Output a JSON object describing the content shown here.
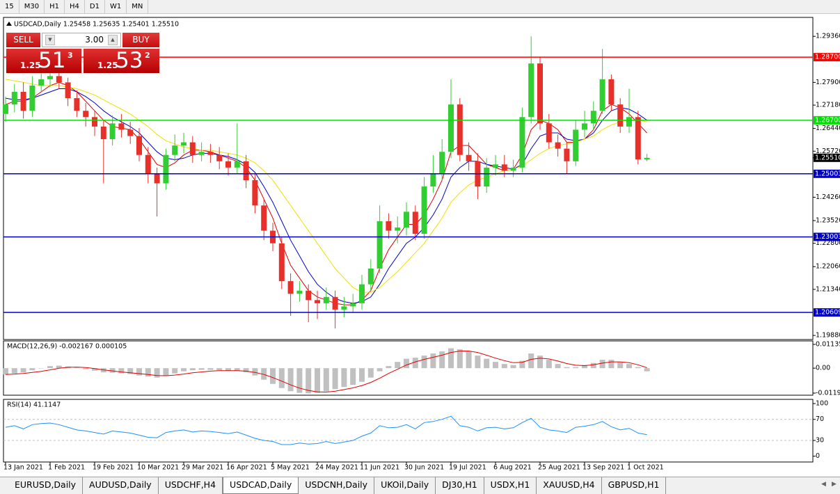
{
  "toolbar": {
    "timeframes": [
      "15",
      "M30",
      "H1",
      "H4",
      "D1",
      "W1",
      "MN"
    ]
  },
  "trade_panel": {
    "sell": "SELL",
    "buy": "BUY",
    "lot": "3.00",
    "sell_price": {
      "prefix": "1.25",
      "main": "51",
      "small": "3"
    },
    "buy_price": {
      "prefix": "1.25",
      "main": "53",
      "small": "2"
    }
  },
  "chart_data": [
    {
      "type": "candlestick",
      "title": "USDCAD,Daily 1.25458 1.25635 1.25401 1.25510",
      "up_color": "#32cd32",
      "down_color": "#e8302a",
      "categories": [
        "13 Jan 2021",
        null,
        null,
        null,
        null,
        "1 Feb 2021",
        null,
        null,
        null,
        null,
        "19 Feb 2021",
        null,
        null,
        null,
        null,
        "10 Mar 2021",
        null,
        null,
        null,
        null,
        "29 Mar 2021",
        null,
        null,
        null,
        null,
        "16 Apr 2021",
        null,
        null,
        null,
        null,
        "5 May 2021",
        null,
        null,
        null,
        null,
        "24 May 2021",
        null,
        null,
        null,
        null,
        "11 Jun 2021",
        null,
        null,
        null,
        null,
        "30 Jun 2021",
        null,
        null,
        null,
        null,
        "19 Jul 2021",
        null,
        null,
        null,
        null,
        "6 Aug 2021",
        null,
        null,
        null,
        null,
        "25 Aug 2021",
        null,
        null,
        null,
        null,
        "13 Sep 2021",
        null,
        null,
        null,
        null,
        "1 Oct 2021",
        null,
        null
      ],
      "open": [
        1.269,
        1.272,
        1.276,
        1.27,
        1.278,
        1.28,
        1.281,
        1.279,
        1.274,
        1.27,
        1.268,
        1.265,
        1.261,
        1.266,
        1.264,
        1.262,
        1.256,
        1.25,
        1.247,
        1.256,
        1.259,
        1.26,
        1.256,
        1.257,
        1.256,
        1.254,
        1.252,
        1.254,
        1.248,
        1.24,
        1.232,
        1.228,
        1.216,
        1.212,
        1.213,
        1.21,
        1.209,
        1.211,
        1.207,
        1.208,
        1.209,
        1.215,
        1.22,
        1.235,
        1.232,
        1.233,
        1.238,
        1.231,
        1.246,
        1.25,
        1.257,
        1.272,
        1.256,
        1.254,
        1.246,
        1.252,
        1.253,
        1.251,
        1.252,
        1.268,
        1.285,
        1.266,
        1.26,
        1.258,
        1.254,
        1.264,
        1.266,
        1.27,
        1.28,
        1.272,
        1.265,
        1.268,
        1.25458
      ],
      "high": [
        1.2745,
        1.2785,
        1.279,
        1.281,
        1.283,
        1.284,
        1.2835,
        1.2805,
        1.2765,
        1.2725,
        1.27,
        1.267,
        1.2685,
        1.269,
        1.2665,
        1.2645,
        1.2585,
        1.252,
        1.258,
        1.2625,
        1.263,
        1.262,
        1.26,
        1.2595,
        1.2585,
        1.2565,
        1.266,
        1.256,
        1.25,
        1.242,
        1.2345,
        1.23,
        1.2185,
        1.216,
        1.215,
        1.213,
        1.214,
        1.213,
        1.211,
        1.212,
        1.218,
        1.223,
        1.24,
        1.2375,
        1.2365,
        1.241,
        1.24,
        1.249,
        1.256,
        1.261,
        1.28,
        1.274,
        1.26,
        1.2565,
        1.255,
        1.256,
        1.256,
        1.2545,
        1.271,
        1.2936,
        1.287,
        1.269,
        1.2625,
        1.26,
        1.267,
        1.27,
        1.273,
        1.2896,
        1.2815,
        1.274,
        1.277,
        1.27,
        1.25635
      ],
      "low": [
        1.2665,
        1.2695,
        1.2675,
        1.268,
        1.276,
        1.2775,
        1.277,
        1.2715,
        1.268,
        1.265,
        1.262,
        1.247,
        1.259,
        1.2615,
        1.2595,
        1.254,
        1.247,
        1.2365,
        1.245,
        1.254,
        1.2565,
        1.2535,
        1.254,
        1.2535,
        1.2515,
        1.2495,
        1.25,
        1.2455,
        1.2375,
        1.229,
        1.2255,
        1.2135,
        1.205,
        1.2095,
        1.203,
        1.204,
        1.207,
        1.201,
        1.2045,
        1.206,
        1.207,
        1.213,
        1.2185,
        1.2295,
        1.228,
        1.2305,
        1.229,
        1.2295,
        1.244,
        1.248,
        1.255,
        1.254,
        1.251,
        1.242,
        1.244,
        1.2495,
        1.249,
        1.249,
        1.2505,
        1.266,
        1.264,
        1.258,
        1.2555,
        1.25,
        1.2525,
        1.2615,
        1.264,
        1.269,
        1.27,
        1.263,
        1.263,
        1.253,
        1.25401
      ],
      "close": [
        1.272,
        1.276,
        1.27,
        1.278,
        1.28,
        1.281,
        1.279,
        1.274,
        1.27,
        1.268,
        1.265,
        1.261,
        1.266,
        1.264,
        1.262,
        1.256,
        1.25,
        1.247,
        1.256,
        1.259,
        1.26,
        1.256,
        1.257,
        1.256,
        1.254,
        1.252,
        1.254,
        1.248,
        1.24,
        1.232,
        1.228,
        1.216,
        1.212,
        1.213,
        1.21,
        1.209,
        1.211,
        1.207,
        1.208,
        1.209,
        1.215,
        1.22,
        1.235,
        1.232,
        1.233,
        1.238,
        1.231,
        1.246,
        1.25,
        1.257,
        1.272,
        1.256,
        1.254,
        1.246,
        1.252,
        1.253,
        1.251,
        1.252,
        1.268,
        1.285,
        1.266,
        1.26,
        1.258,
        1.254,
        1.264,
        1.266,
        1.27,
        1.28,
        1.272,
        1.265,
        1.268,
        1.2546,
        1.2551
      ],
      "series": [
        {
          "color": "#e00000",
          "values": [
            1.272,
            1.273,
            1.273,
            1.274,
            1.276,
            1.278,
            1.279,
            1.278,
            1.276,
            1.273,
            1.27,
            1.267,
            1.265,
            1.2645,
            1.264,
            1.261,
            1.257,
            1.253,
            1.252,
            1.2535,
            1.256,
            1.2575,
            1.2575,
            1.257,
            1.256,
            1.255,
            1.254,
            1.252,
            1.248,
            1.242,
            1.236,
            1.228,
            1.221,
            1.217,
            1.213,
            1.211,
            1.21,
            1.209,
            1.2085,
            1.2085,
            1.21,
            1.213,
            1.22,
            1.226,
            1.23,
            1.234,
            1.234,
            1.237,
            1.242,
            1.248,
            1.257,
            1.259,
            1.259,
            1.256,
            1.253,
            1.252,
            1.251,
            1.2515,
            1.256,
            1.264,
            1.267,
            1.266,
            1.264,
            1.26,
            1.26,
            1.261,
            1.264,
            1.27,
            1.272,
            1.271,
            1.269,
            1.266,
            1.263
          ]
        },
        {
          "color": "#0000c8",
          "values": [
            1.274,
            1.2735,
            1.2735,
            1.274,
            1.275,
            1.276,
            1.277,
            1.277,
            1.276,
            1.2745,
            1.2725,
            1.27,
            1.268,
            1.2665,
            1.265,
            1.263,
            1.26,
            1.257,
            1.255,
            1.2545,
            1.255,
            1.256,
            1.2565,
            1.2565,
            1.256,
            1.2555,
            1.2545,
            1.253,
            1.2505,
            1.246,
            1.241,
            1.235,
            1.229,
            1.224,
            1.219,
            1.215,
            1.2125,
            1.2105,
            1.2095,
            1.209,
            1.2095,
            1.211,
            1.215,
            1.22,
            1.224,
            1.228,
            1.23,
            1.233,
            1.237,
            1.242,
            1.249,
            1.252,
            1.254,
            1.254,
            1.253,
            1.2525,
            1.252,
            1.2515,
            1.253,
            1.258,
            1.262,
            1.263,
            1.263,
            1.261,
            1.2605,
            1.261,
            1.263,
            1.267,
            1.27,
            1.271,
            1.2705,
            1.269,
            1.267
          ]
        },
        {
          "color": "#f0e000",
          "values": [
            1.28,
            1.2795,
            1.279,
            1.2785,
            1.278,
            1.278,
            1.278,
            1.2775,
            1.277,
            1.276,
            1.275,
            1.2735,
            1.272,
            1.2705,
            1.269,
            1.267,
            1.265,
            1.2625,
            1.2605,
            1.2595,
            1.2585,
            1.258,
            1.2575,
            1.2575,
            1.257,
            1.2565,
            1.256,
            1.255,
            1.2535,
            1.251,
            1.248,
            1.244,
            1.24,
            1.236,
            1.232,
            1.228,
            1.224,
            1.22,
            1.217,
            1.214,
            1.2125,
            1.2125,
            1.214,
            1.2165,
            1.219,
            1.222,
            1.225,
            1.228,
            1.232,
            1.236,
            1.241,
            1.244,
            1.2465,
            1.248,
            1.249,
            1.25,
            1.251,
            1.2515,
            1.2525,
            1.2545,
            1.2565,
            1.258,
            1.259,
            1.2595,
            1.26,
            1.261,
            1.262,
            1.264,
            1.2655,
            1.2665,
            1.267,
            1.267,
            1.2665
          ]
        }
      ],
      "levels": [
        {
          "value": 1.287,
          "label": "1.28700",
          "color": "#ff0000"
        },
        {
          "value": 1.267,
          "label": "1.26700",
          "color": "#00e000"
        },
        {
          "value": 1.25003,
          "label": "1.25003",
          "color": "#0000cc"
        },
        {
          "value": 1.23003,
          "label": "1.23003",
          "color": "#0000cc"
        },
        {
          "value": 1.20609,
          "label": "1.20609",
          "color": "#0000cc"
        }
      ],
      "last_price": {
        "value": 1.2551,
        "label": "1.25510"
      },
      "ylim": [
        1.1975,
        1.2996
      ],
      "yticks": [
        {
          "value": 1.2936,
          "label": "1.29360"
        },
        {
          "value": 1.279,
          "label": "1.27900"
        },
        {
          "value": 1.2718,
          "label": "1.27180"
        },
        {
          "value": 1.2644,
          "label": "1.26440"
        },
        {
          "value": 1.2572,
          "label": "1.25720"
        },
        {
          "value": 1.2426,
          "label": "1.24260"
        },
        {
          "value": 1.2352,
          "label": "1.23520"
        },
        {
          "value": 1.228,
          "label": "1.22800"
        },
        {
          "value": 1.2206,
          "label": "1.22060"
        },
        {
          "value": 1.2134,
          "label": "1.21340"
        },
        {
          "value": 1.1988,
          "label": "1.19880"
        }
      ]
    },
    {
      "type": "macd",
      "title": "MACD(12,26,9) -0.002167 0.000105",
      "histogram": {
        "color": "#c0c0c0",
        "values": [
          -0.003,
          -0.0025,
          -0.002,
          -0.001,
          0.0,
          0.001,
          0.0012,
          0.0008,
          0.0002,
          -0.0005,
          -0.0012,
          -0.002,
          -0.0022,
          -0.0025,
          -0.0028,
          -0.0035,
          -0.004,
          -0.0045,
          -0.0035,
          -0.0025,
          -0.0015,
          -0.001,
          -0.0008,
          -0.0008,
          -0.001,
          -0.0012,
          -0.0012,
          -0.002,
          -0.0035,
          -0.0055,
          -0.0075,
          -0.0095,
          -0.011,
          -0.0118,
          -0.012,
          -0.0118,
          -0.011,
          -0.01,
          -0.009,
          -0.008,
          -0.0065,
          -0.0045,
          -0.0015,
          0.001,
          0.003,
          0.0045,
          0.005,
          0.006,
          0.007,
          0.008,
          0.0095,
          0.009,
          0.008,
          0.006,
          0.0045,
          0.003,
          0.002,
          0.0015,
          0.0035,
          0.007,
          0.006,
          0.004,
          0.002,
          0.0005,
          0.0005,
          0.0015,
          0.0025,
          0.004,
          0.004,
          0.003,
          0.002,
          0.0005,
          -0.0015
        ]
      },
      "signal": {
        "color": "#e00000",
        "values": [
          -0.003,
          -0.0028,
          -0.0025,
          -0.002,
          -0.0015,
          -0.0008,
          0.0,
          0.0004,
          0.0005,
          0.0003,
          -0.0002,
          -0.0008,
          -0.0013,
          -0.0018,
          -0.0022,
          -0.0026,
          -0.003,
          -0.0035,
          -0.0036,
          -0.0033,
          -0.0028,
          -0.0022,
          -0.0018,
          -0.0014,
          -0.0012,
          -0.0012,
          -0.0012,
          -0.0014,
          -0.002,
          -0.003,
          -0.0045,
          -0.0062,
          -0.008,
          -0.0095,
          -0.0106,
          -0.0113,
          -0.0114,
          -0.011,
          -0.0102,
          -0.0094,
          -0.0083,
          -0.0068,
          -0.0048,
          -0.0025,
          -0.0005,
          0.0015,
          0.003,
          0.0042,
          0.0052,
          0.0062,
          0.0075,
          0.0082,
          0.0082,
          0.0075,
          0.0062,
          0.0048,
          0.0036,
          0.0026,
          0.0028,
          0.0042,
          0.0048,
          0.0044,
          0.0034,
          0.0022,
          0.0014,
          0.0012,
          0.0016,
          0.0024,
          0.003,
          0.003,
          0.0026,
          0.0016,
          0.0002
        ]
      },
      "ylim": [
        -0.0129,
        0.013
      ],
      "yticks": [
        {
          "value": 0.01135,
          "label": "0.01135"
        },
        {
          "value": 0,
          "label": "0.00"
        },
        {
          "value": -0.0119,
          "label": "-0.01190"
        }
      ]
    },
    {
      "type": "rsi",
      "title": "RSI(14) 41.1147",
      "color": "#1e90ff",
      "values": [
        55,
        58,
        52,
        60,
        62,
        63,
        60,
        55,
        50,
        48,
        45,
        42,
        48,
        46,
        44,
        40,
        36,
        35,
        45,
        48,
        50,
        46,
        48,
        47,
        45,
        43,
        46,
        40,
        34,
        30,
        28,
        22,
        22,
        25,
        23,
        24,
        28,
        24,
        27,
        30,
        38,
        44,
        58,
        54,
        55,
        60,
        52,
        64,
        66,
        70,
        76,
        58,
        55,
        48,
        54,
        55,
        52,
        54,
        64,
        72,
        55,
        50,
        48,
        45,
        55,
        57,
        60,
        66,
        56,
        50,
        53,
        44,
        41
      ],
      "levels": [
        70,
        30
      ],
      "ylim": [
        -11,
        108
      ],
      "yticks": [
        0,
        30,
        70,
        100
      ]
    }
  ],
  "tabs": [
    "EURUSD,Daily",
    "AUDUSD,Daily",
    "USDCHF,H4",
    "USDCAD,Daily",
    "USDCNH,Daily",
    "UKOil,Daily",
    "DJ30,H1",
    "USDX,H1",
    "XAUUSD,H4",
    "GBPUSD,H1"
  ],
  "active_tab": "USDCAD,Daily"
}
